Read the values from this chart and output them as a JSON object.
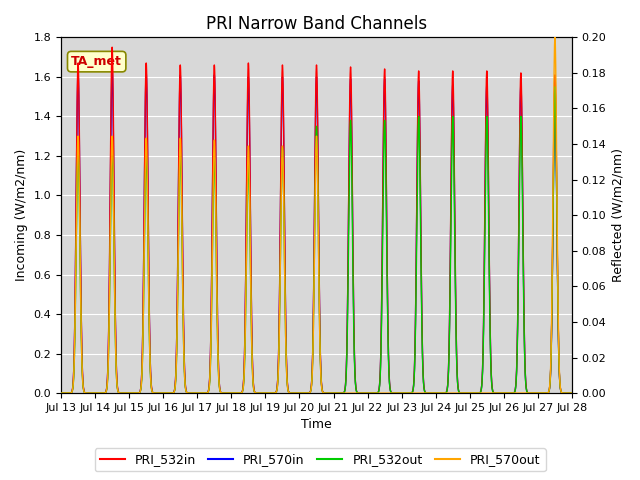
{
  "title": "PRI Narrow Band Channels",
  "xlabel": "Time",
  "ylabel_left": "Incoming (W/m2/nm)",
  "ylabel_right": "Reflected (W/m2/nm)",
  "ylim_left": [
    0.0,
    1.8
  ],
  "ylim_right": [
    0.0,
    0.2
  ],
  "yticks_left": [
    0.0,
    0.2,
    0.4,
    0.6,
    0.8,
    1.0,
    1.2,
    1.4,
    1.6,
    1.8
  ],
  "yticks_right": [
    0.0,
    0.02,
    0.04,
    0.06,
    0.08,
    0.1,
    0.12,
    0.14,
    0.16,
    0.18,
    0.2
  ],
  "xtick_days": [
    13,
    14,
    15,
    16,
    17,
    18,
    19,
    20,
    21,
    22,
    23,
    24,
    25,
    26,
    27,
    28
  ],
  "xtick_labels": [
    "Jul 13",
    "Jul 14",
    "Jul 15",
    "Jul 16",
    "Jul 17",
    "Jul 18",
    "Jul 19",
    "Jul 20",
    "Jul 21",
    "Jul 22",
    "Jul 23",
    "Jul 24",
    "Jul 25",
    "Jul 26",
    "Jul 27",
    "Jul 28"
  ],
  "annotation_text": "TA_met",
  "plot_bg_color": "#d8d8d8",
  "grid_color": "#ffffff",
  "title_fontsize": 12,
  "label_fontsize": 9,
  "tick_fontsize": 8,
  "legend_fontsize": 9,
  "days": [
    13,
    14,
    15,
    16,
    17,
    18,
    19,
    20,
    21,
    22,
    23,
    24,
    25,
    26,
    27
  ],
  "peak_532in": [
    1.67,
    1.75,
    1.67,
    1.66,
    1.66,
    1.67,
    1.66,
    1.66,
    1.65,
    1.64,
    1.63,
    1.63,
    1.63,
    1.62,
    1.61
  ],
  "peak_570in": [
    1.62,
    1.63,
    1.62,
    1.61,
    1.61,
    1.6,
    1.6,
    1.6,
    1.59,
    1.59,
    1.58,
    1.56,
    1.56,
    1.56,
    1.55
  ],
  "peak_532out_left": [
    1.22,
    1.22,
    1.2,
    1.22,
    1.19,
    1.16,
    1.24,
    1.35,
    1.38,
    1.38,
    1.4,
    1.4,
    1.4,
    1.4,
    1.55
  ],
  "peak_570out_left": [
    1.3,
    1.3,
    1.29,
    1.29,
    1.28,
    1.25,
    1.25,
    1.3,
    0.0,
    0.0,
    0.0,
    0.0,
    0.0,
    0.0,
    1.8
  ],
  "pulse_sigma": 0.055,
  "pulse_night_cutoff": 0.27,
  "line_width": 1.0
}
